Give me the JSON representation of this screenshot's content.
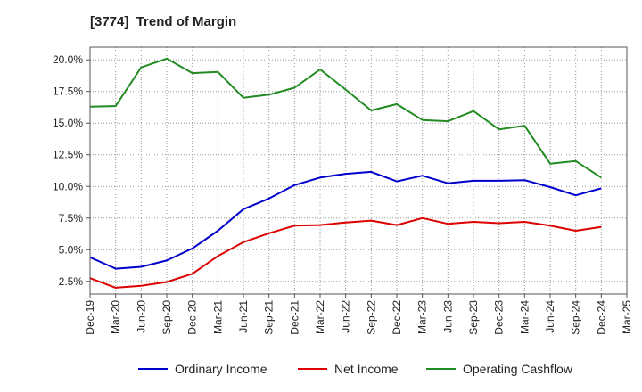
{
  "chart_data": {
    "type": "line",
    "title": "[3774]  Trend of Margin",
    "xlabel": "",
    "ylabel": "",
    "x": [
      "Dec-19",
      "Mar-20",
      "Jun-20",
      "Sep-20",
      "Dec-20",
      "Mar-21",
      "Jun-21",
      "Sep-21",
      "Dec-21",
      "Mar-22",
      "Jun-22",
      "Sep-22",
      "Dec-22",
      "Mar-23",
      "Jun-23",
      "Sep-23",
      "Dec-23",
      "Mar-24",
      "Jun-24",
      "Sep-24",
      "Dec-24"
    ],
    "x_ticks": [
      "Dec-19",
      "Mar-20",
      "Jun-20",
      "Sep-20",
      "Dec-20",
      "Mar-21",
      "Jun-21",
      "Sep-21",
      "Dec-21",
      "Mar-22",
      "Jun-22",
      "Sep-22",
      "Dec-22",
      "Mar-23",
      "Jun-23",
      "Sep-23",
      "Dec-23",
      "Mar-24",
      "Jun-24",
      "Sep-24",
      "Dec-24",
      "Mar-25"
    ],
    "y_ticks": [
      "2.5%",
      "5.0%",
      "7.5%",
      "10.0%",
      "12.5%",
      "15.0%",
      "17.5%",
      "20.0%"
    ],
    "y_tick_values": [
      2.5,
      5.0,
      7.5,
      10.0,
      12.5,
      15.0,
      17.5,
      20.0
    ],
    "ylim": [
      1.5,
      21.0
    ],
    "grid": true,
    "legend_position": "bottom",
    "series": [
      {
        "name": "Ordinary Income",
        "color": "#0000cc",
        "values": [
          4.4,
          3.5,
          3.65,
          4.15,
          5.1,
          6.5,
          8.2,
          9.05,
          10.1,
          10.7,
          11.0,
          11.15,
          10.4,
          10.85,
          10.25,
          10.45,
          10.45,
          10.5,
          9.95,
          9.3,
          9.85
        ]
      },
      {
        "name": "Net Income",
        "color": "#dd0000",
        "values": [
          2.75,
          2.0,
          2.15,
          2.45,
          3.1,
          4.5,
          5.6,
          6.3,
          6.9,
          6.95,
          7.15,
          7.3,
          6.95,
          7.5,
          7.05,
          7.2,
          7.1,
          7.2,
          6.9,
          6.5,
          6.8
        ]
      },
      {
        "name": "Operating Cashflow",
        "color": "#228b22",
        "values": [
          16.3,
          16.35,
          19.4,
          20.1,
          18.95,
          19.05,
          17.0,
          17.25,
          17.8,
          19.25,
          17.65,
          16.0,
          16.5,
          15.25,
          15.15,
          15.95,
          14.5,
          14.8,
          11.8,
          12.0,
          10.7
        ]
      }
    ]
  }
}
